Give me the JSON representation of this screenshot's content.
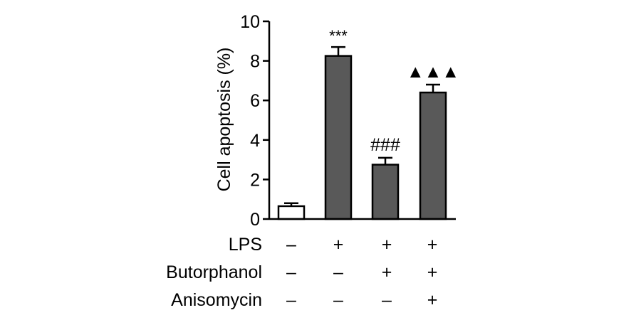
{
  "chart_data": {
    "type": "bar",
    "title": "",
    "xlabel": "",
    "ylabel": "Cell apoptosis (%)",
    "ylim": [
      0,
      10
    ],
    "yticks": [
      "0",
      "2",
      "4",
      "6",
      "8",
      "10"
    ],
    "grid": false,
    "legend": "none",
    "categories": [
      "Control",
      "LPS",
      "LPS + Butorphanol",
      "LPS + Butorphanol + Anisomycin"
    ],
    "values": [
      0.65,
      8.25,
      2.75,
      6.4
    ],
    "errors": [
      0.15,
      0.45,
      0.35,
      0.4
    ],
    "bar_fill": [
      "#ffffff",
      "#595959",
      "#595959",
      "#595959"
    ],
    "bar_stroke": "#000000",
    "annotations": [
      "",
      "***",
      "###",
      "▲▲▲"
    ],
    "treatment_rows": [
      {
        "label": "LPS",
        "signs": [
          "–",
          "+",
          "+",
          "+"
        ]
      },
      {
        "label": "Butorphanol",
        "signs": [
          "–",
          "–",
          "+",
          "+"
        ]
      },
      {
        "label": "Anisomycin",
        "signs": [
          "–",
          "–",
          "–",
          "+"
        ]
      }
    ]
  }
}
